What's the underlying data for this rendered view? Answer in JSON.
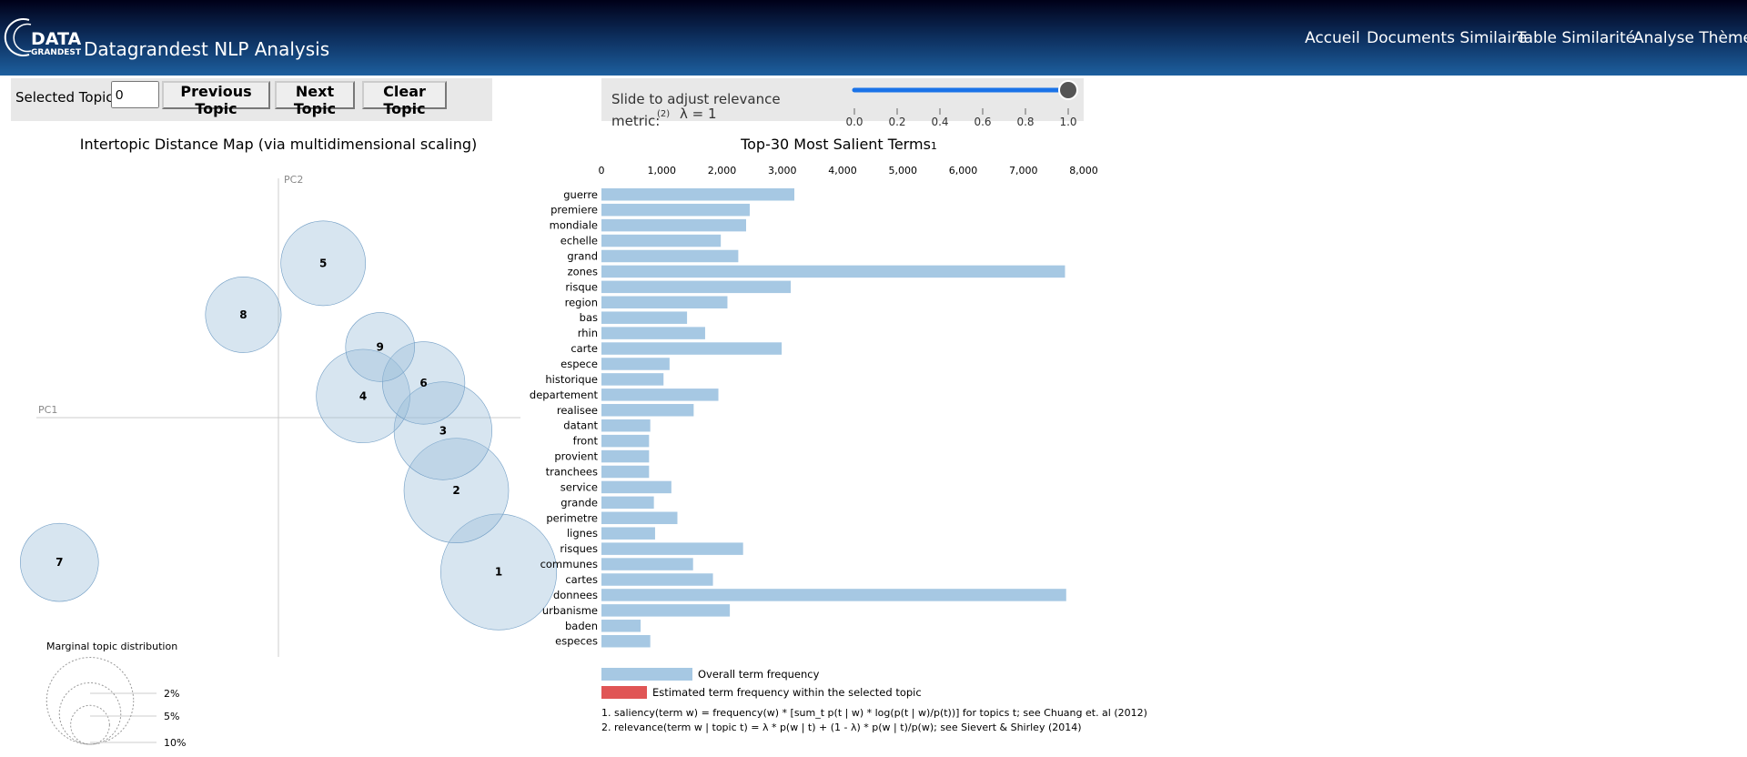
{
  "header": {
    "logo": {
      "top": "DATA",
      "bottom": "GRANDEST"
    },
    "title": "Datagrandest NLP Analysis",
    "nav": [
      "Accueil",
      "Documents Similaire",
      "Table Similarité",
      "Analyse Thèmes"
    ]
  },
  "controls": {
    "selected_topic_label": "Selected Topic:",
    "selected_topic": "0",
    "buttons": [
      "Previous Topic",
      "Next Topic",
      "Clear Topic"
    ]
  },
  "relevance_slider": {
    "label_lines": [
      "Slide to adjust relevance",
      "metric:"
    ],
    "label_note": "(2)",
    "value": 1,
    "value_label": "λ = 1",
    "xlim": [
      0,
      1
    ],
    "xticks": [
      {
        "value": 0,
        "label": "0.0"
      },
      {
        "value": 0.2,
        "label": "0.2"
      },
      {
        "value": 0.4,
        "label": "0.4"
      },
      {
        "value": 0.6,
        "label": "0.6"
      },
      {
        "value": 0.8,
        "label": "0.8"
      },
      {
        "value": 1,
        "label": "1.0"
      }
    ],
    "color": "#1a73e8"
  },
  "chart_data": [
    {
      "type": "scatter",
      "title": "Intertopic Distance Map (via multidimensional scaling)",
      "x_label": "PC1",
      "y_label": "PC2",
      "categories": [
        "1",
        "2",
        "3",
        "4",
        "5",
        "6",
        "7",
        "8",
        "9"
      ],
      "x": [
        0.182,
        0.147,
        0.136,
        0.07,
        0.037,
        0.12,
        -0.181,
        -0.029,
        0.084
      ],
      "values": [
        -0.129,
        -0.061,
        -0.011,
        0.018,
        0.129,
        0.029,
        -0.121,
        0.086,
        0.059
      ],
      "sizes": [
        17.8,
        14.5,
        12.7,
        11.6,
        9.5,
        9.0,
        8.1,
        7.6,
        6.3
      ],
      "xlim": [
        -0.2,
        0.2
      ],
      "ylim": [
        -0.2,
        0.2
      ],
      "color": "#9abdda",
      "size_legend": {
        "title": "Marginal topic distribution",
        "sizes": [
          {
            "value": 2,
            "label": "2%"
          },
          {
            "value": 5,
            "label": "5%"
          },
          {
            "value": 10,
            "label": "10%"
          }
        ]
      }
    },
    {
      "type": "bar",
      "orientation": "horizontal",
      "title": "Top-30 Most Salient Terms",
      "title_note": "1",
      "categories": [
        "guerre",
        "premiere",
        "mondiale",
        "echelle",
        "grand",
        "zones",
        "risque",
        "region",
        "bas",
        "rhin",
        "carte",
        "espece",
        "historique",
        "departement",
        "realisee",
        "datant",
        "front",
        "provient",
        "tranchees",
        "service",
        "grande",
        "perimetre",
        "lignes",
        "risques",
        "communes",
        "cartes",
        "donnees",
        "urbanisme",
        "baden",
        "especes"
      ],
      "series": [
        {
          "name": "Overall term frequency",
          "color": "#a6c8e3",
          "values": [
            3200,
            2460,
            2400,
            1980,
            2270,
            7690,
            3140,
            2090,
            1420,
            1720,
            2990,
            1130,
            1030,
            1940,
            1530,
            810,
            790,
            790,
            790,
            1160,
            870,
            1260,
            890,
            2350,
            1520,
            1850,
            7710,
            2130,
            650,
            810
          ]
        }
      ],
      "legend_extra": [
        {
          "name": "Estimated term frequency within the selected topic",
          "color": "#e05555"
        }
      ],
      "xlim": [
        0,
        8000
      ],
      "xticks": [
        0,
        {
          "value": 1000,
          "label": "1,000"
        },
        {
          "value": 2000,
          "label": "2,000"
        },
        {
          "value": 3000,
          "label": "3,000"
        },
        {
          "value": 4000,
          "label": "4,000"
        },
        {
          "value": 5000,
          "label": "5,000"
        },
        {
          "value": 6000,
          "label": "6,000"
        },
        {
          "value": 7000,
          "label": "7,000"
        },
        {
          "value": 8000,
          "label": "8,000"
        }
      ],
      "grid": false,
      "footnotes": [
        "1. saliency(term w) = frequency(w) * [sum_t p(t | w) * log(p(t | w)/p(t))] for topics t; see Chuang et. al (2012)",
        "2. relevance(term w | topic t) = λ * p(w | t) + (1 - λ) * p(w | t)/p(w); see Sievert & Shirley (2014)"
      ]
    }
  ]
}
